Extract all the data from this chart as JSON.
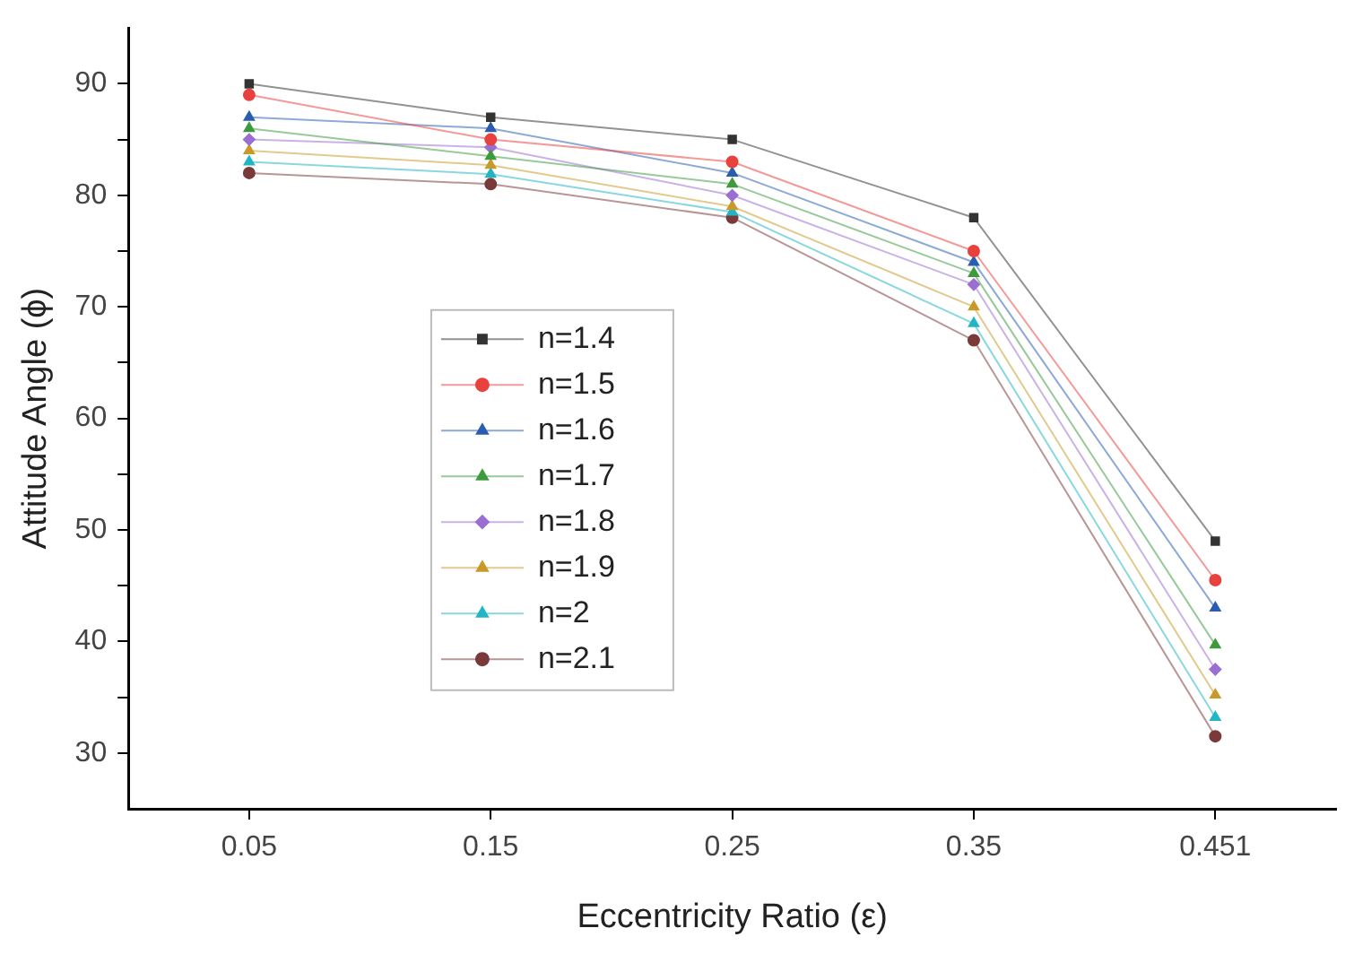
{
  "chart_data": {
    "type": "line",
    "xlabel": "Eccentricity Ratio (ε)",
    "ylabel": "Attitude Angle (ϕ)",
    "categories": [
      "0.05",
      "0.15",
      "0.25",
      "0.35",
      "0.451"
    ],
    "ylim": [
      25,
      95
    ],
    "yticks": [
      30,
      {
        "value": 35,
        "label": null
      },
      40,
      {
        "value": 45,
        "label": null
      },
      50,
      {
        "value": 55,
        "label": null
      },
      60,
      {
        "value": 65,
        "label": null
      },
      70,
      {
        "value": 75,
        "label": null
      },
      80,
      {
        "value": 85,
        "label": null
      },
      90
    ],
    "grid": false,
    "legend": "center left",
    "series": [
      {
        "name": "n=1.4",
        "color": "#333333",
        "marker": "square",
        "values": [
          90,
          87,
          85,
          78,
          49
        ]
      },
      {
        "name": "n=1.5",
        "color": "#e8413e",
        "marker": "circle",
        "values": [
          89,
          85,
          83,
          75,
          45.5
        ]
      },
      {
        "name": "n=1.6",
        "color": "#2a5db0",
        "marker": "triangle",
        "values": [
          87,
          86,
          82,
          74,
          43
        ]
      },
      {
        "name": "n=1.7",
        "color": "#3d9a3d",
        "marker": "triangle",
        "values": [
          86,
          83.5,
          81,
          73,
          39.7
        ]
      },
      {
        "name": "n=1.8",
        "color": "#9a6fd1",
        "marker": "diamond",
        "values": [
          85,
          84.3,
          80,
          72,
          37.5
        ]
      },
      {
        "name": "n=1.9",
        "color": "#c89a2a",
        "marker": "triangle",
        "values": [
          84,
          82.7,
          79,
          70,
          35.2
        ]
      },
      {
        "name": "n=2",
        "color": "#22b5c4",
        "marker": "triangle",
        "values": [
          83,
          81.9,
          78.5,
          68.5,
          33.2
        ]
      },
      {
        "name": "n=2.1",
        "color": "#7a3a3a",
        "marker": "circle",
        "values": [
          82,
          81,
          78,
          67,
          31.5
        ]
      }
    ]
  }
}
